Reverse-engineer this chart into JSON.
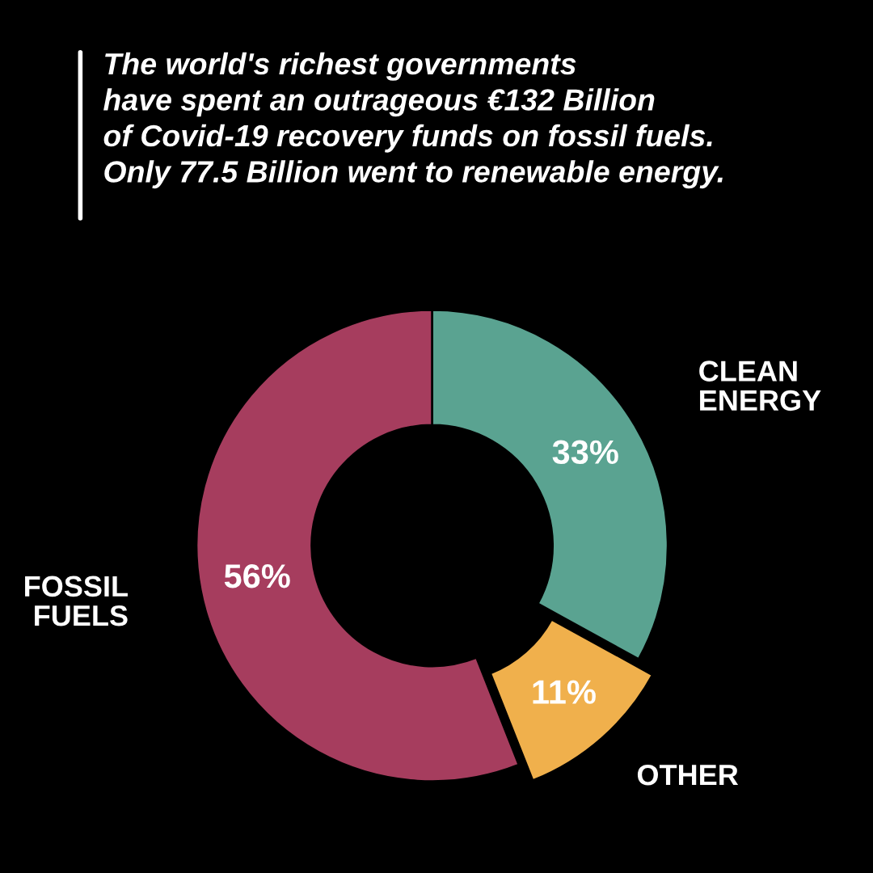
{
  "chart_data": {
    "type": "donut",
    "title": "The world's richest governments\nhave spent an outrageous €132 Billion\nof Covid-19 recovery funds on fossil fuels.\nOnly 77.5 Billion went to renewable energy.",
    "categories": [
      "CLEAN\nENERGY",
      "OTHER",
      "FOSSIL\nFUELS"
    ],
    "values": [
      33,
      11,
      56
    ],
    "value_labels": [
      "33%",
      "11%",
      "56%"
    ],
    "colors": [
      "#5aa391",
      "#f0b04c",
      "#a63d5e"
    ]
  }
}
